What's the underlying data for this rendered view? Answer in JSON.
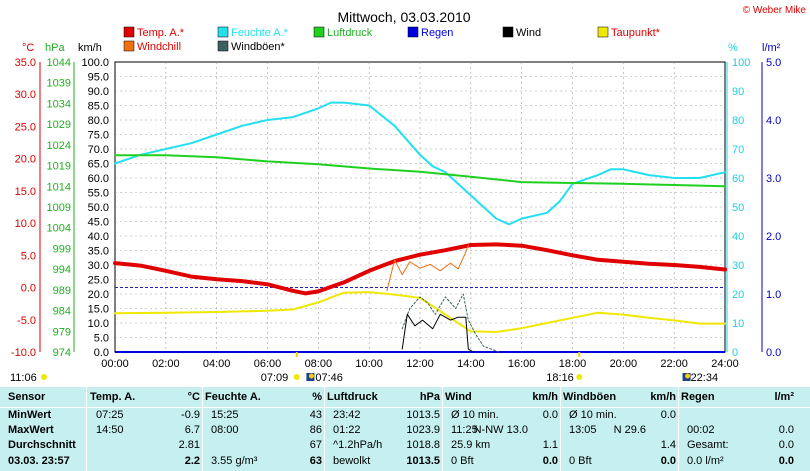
{
  "title": "Mittwoch, 03.03.2010",
  "brand": "© Weber Mike",
  "legend": [
    {
      "name": "Temp. A.*",
      "color": "#e00000",
      "text_color": "#e00000"
    },
    {
      "name": "Feuchte A.*",
      "color": "#22e0f0",
      "text_color": "#22e0f0"
    },
    {
      "name": "Luftdruck",
      "color": "#20d020",
      "text_color": "#20b020"
    },
    {
      "name": "Regen",
      "color": "#0000e0",
      "text_color": "#0000e0"
    },
    {
      "name": "Wind",
      "color": "#000000",
      "text_color": "#000000"
    },
    {
      "name": "Taupunkt*",
      "color": "#f0e800",
      "text_color": "#e00000"
    },
    {
      "name": "Windchill",
      "color": "#f07010",
      "text_color": "#e00000"
    },
    {
      "name": "Windböen*",
      "color": "#406060",
      "text_color": "#000000"
    }
  ],
  "axes": {
    "temp": {
      "label": "°C",
      "ticks": [
        "35.0",
        "30.0",
        "25.0",
        "20.0",
        "15.0",
        "10.0",
        "5.0",
        "0.0",
        "-5.0",
        "-10.0"
      ],
      "color": "#e00000"
    },
    "pressure": {
      "label": "hPa",
      "ticks": [
        "1044",
        "1039",
        "1034",
        "1029",
        "1024",
        "1019",
        "1014",
        "1009",
        "1004",
        "999",
        "994",
        "989",
        "984",
        "979",
        "974"
      ],
      "color": "#20b020"
    },
    "wind": {
      "label": "km/h",
      "ticks": [
        "100.0",
        "95.0",
        "90.0",
        "85.0",
        "80.0",
        "75.0",
        "70.0",
        "65.0",
        "60.0",
        "55.0",
        "50.0",
        "45.0",
        "40.0",
        "35.0",
        "30.0",
        "25.0",
        "20.0",
        "15.0",
        "10.0",
        "5.0",
        "0.0"
      ],
      "color": "#000000"
    },
    "humidity": {
      "label": "%",
      "ticks": [
        "100",
        "90",
        "80",
        "70",
        "60",
        "50",
        "40",
        "30",
        "20",
        "10",
        "0"
      ],
      "color": "#20d0e0"
    },
    "rain": {
      "label": "l/m²",
      "ticks": [
        "5.0",
        "4.0",
        "3.0",
        "2.0",
        "1.0",
        "0.0"
      ],
      "color": "#0000c0"
    },
    "time": {
      "ticks": [
        "00:00",
        "02:00",
        "04:00",
        "06:00",
        "08:00",
        "10:00",
        "12:00",
        "14:00",
        "16:00",
        "18:00",
        "20:00",
        "22:00",
        "24:00"
      ]
    }
  },
  "sun": {
    "left_time": "11:06",
    "rise": "07:09",
    "moon_rise": "07:46",
    "sunset": "18:16",
    "moon_set": "22:34"
  },
  "chart_data": {
    "type": "line",
    "x_unit": "hours",
    "xlim": [
      0,
      24
    ],
    "grid": true,
    "series": [
      {
        "name": "Temp. A.*",
        "axis": "temp",
        "color": "#e00000",
        "width": 4,
        "x": [
          0,
          1,
          2,
          3,
          4,
          5,
          6,
          7,
          7.5,
          8,
          9,
          10,
          11,
          12,
          13,
          14,
          15,
          16,
          17,
          18,
          19,
          20,
          21,
          22,
          23,
          24
        ],
        "y": [
          3.8,
          3.4,
          2.6,
          1.7,
          1.3,
          1.0,
          0.5,
          -0.5,
          -0.9,
          -0.6,
          0.8,
          2.6,
          4.1,
          5.1,
          5.8,
          6.6,
          6.7,
          6.5,
          5.8,
          5.0,
          4.3,
          4.0,
          3.7,
          3.5,
          3.2,
          2.8
        ]
      },
      {
        "name": "Feuchte A.*",
        "axis": "humidity",
        "color": "#22e0f0",
        "width": 2,
        "x": [
          0,
          1,
          2,
          3,
          4,
          5,
          6,
          7,
          8,
          8.5,
          9,
          10,
          11,
          12,
          12.5,
          13,
          14,
          15,
          15.5,
          16,
          17,
          17.5,
          18,
          19,
          19.5,
          20,
          21,
          22,
          23,
          24
        ],
        "y": [
          65,
          68,
          70,
          72,
          75,
          78,
          80,
          81,
          84,
          86,
          86,
          85,
          78,
          68,
          64,
          62,
          54,
          46,
          44,
          46,
          48,
          52,
          58,
          61,
          63,
          63,
          61,
          60,
          60,
          62
        ]
      },
      {
        "name": "Luftdruck",
        "axis": "pressure",
        "color": "#20d020",
        "width": 2,
        "x": [
          0,
          2,
          4,
          6,
          8,
          10,
          12,
          14,
          16,
          18,
          20,
          22,
          24
        ],
        "y": [
          1021.5,
          1021.5,
          1021.0,
          1020.0,
          1019.3,
          1018.3,
          1017.5,
          1016.3,
          1015.0,
          1014.8,
          1014.6,
          1014.3,
          1014.0
        ]
      },
      {
        "name": "Taupunkt*",
        "axis": "temp",
        "color": "#f0e800",
        "width": 2,
        "x": [
          0,
          2,
          4,
          5,
          6,
          7,
          8,
          9,
          10,
          11,
          12,
          13,
          14,
          15,
          16,
          17,
          18,
          19,
          20,
          21,
          22,
          23,
          24
        ],
        "y": [
          -4.0,
          -3.9,
          -3.8,
          -3.7,
          -3.6,
          -3.4,
          -2.3,
          -0.8,
          -0.7,
          -1.1,
          -1.6,
          -4.2,
          -6.8,
          -6.9,
          -6.3,
          -5.5,
          -4.7,
          -3.9,
          -4.2,
          -4.7,
          -5.1,
          -5.6,
          -5.6
        ]
      },
      {
        "name": "Windchill",
        "axis": "temp",
        "color": "#f07010",
        "width": 1,
        "x": [
          10.7,
          11.0,
          11.3,
          11.6,
          12.0,
          12.4,
          12.8,
          13.2,
          13.5,
          13.8,
          13.9
        ],
        "y": [
          -0.5,
          4.3,
          2.0,
          4.0,
          3.0,
          3.6,
          2.6,
          3.8,
          2.9,
          5.5,
          6.6
        ]
      },
      {
        "name": "Windböen*",
        "axis": "wind",
        "color": "#406060",
        "width": 1,
        "dash": "2,2",
        "x": [
          11.3,
          11.6,
          12.0,
          12.3,
          12.6,
          13.0,
          13.4,
          13.7,
          13.9,
          14.2,
          14.5,
          14.8,
          15.1
        ],
        "y": [
          8,
          15,
          19,
          17,
          13,
          19,
          15,
          20,
          11,
          6,
          2,
          1,
          0
        ]
      },
      {
        "name": "Wind",
        "axis": "wind",
        "color": "#000000",
        "width": 1,
        "x": [
          11.3,
          11.5,
          11.8,
          12.1,
          12.5,
          12.8,
          13.2,
          13.5,
          13.8,
          13.9,
          14.1
        ],
        "y": [
          1,
          13,
          9,
          11,
          8,
          13,
          11,
          12,
          12,
          1,
          0
        ]
      }
    ]
  },
  "stats": {
    "headers": {
      "sensor": "Sensor",
      "temp": "Temp. A.",
      "temp_u": "°C",
      "hum": "Feuchte A.",
      "hum_u": "%",
      "press": "Luftdruck",
      "press_u": "hPa",
      "wind": "Wind",
      "wind_u": "km/h",
      "gust": "Windböen",
      "gust_u": "km/h",
      "rain": "Regen",
      "rain_u": "l/m²"
    },
    "rows": [
      {
        "label": "MinWert",
        "temp_t": "07:25",
        "temp_v": "-0.9",
        "hum_t": "15:25",
        "hum_v": "43",
        "press_t": "23:42",
        "press_v": "1013.5",
        "wind_t": "Ø 10 min.",
        "wind_v": "0.0",
        "gust_t": "Ø 10 min.",
        "gust_v": "0.0",
        "rain_t": "",
        "rain_v": ""
      },
      {
        "label": "MaxWert",
        "temp_t": "14:50",
        "temp_v": "6.7",
        "hum_t": "08:00",
        "hum_v": "86",
        "press_t": "01:22",
        "press_v": "1023.9",
        "wind_t": "11:25",
        "wind_m": "N-NW 13.0",
        "wind_v": "",
        "gust_t": "13:05",
        "gust_m": "N 29.6",
        "gust_v": "",
        "rain_t": "00:02",
        "rain_v": "0.0"
      },
      {
        "label": "Durchschnitt",
        "temp_t": "",
        "temp_v": "2.81",
        "hum_t": "",
        "hum_v": "67",
        "press_t": "^1.2hPa/h",
        "press_v": "1018.8",
        "wind_t": "25.9 km",
        "wind_v": "1.1",
        "gust_t": "",
        "gust_v": "1.4",
        "rain_t": "Gesamt:",
        "rain_v": "0.0"
      },
      {
        "label": "03.03. 23:57",
        "temp_t": "",
        "temp_v": "2.2",
        "hum_t": "3.55 g/m³",
        "hum_v": "63",
        "press_t": "bewolkt",
        "press_v": "1013.5",
        "wind_t": "0 Bft",
        "wind_v": "0.0",
        "gust_t": "0 Bft",
        "gust_v": "0.0",
        "rain_t": "0.0 l/m²",
        "rain_v": "0.0"
      }
    ]
  }
}
